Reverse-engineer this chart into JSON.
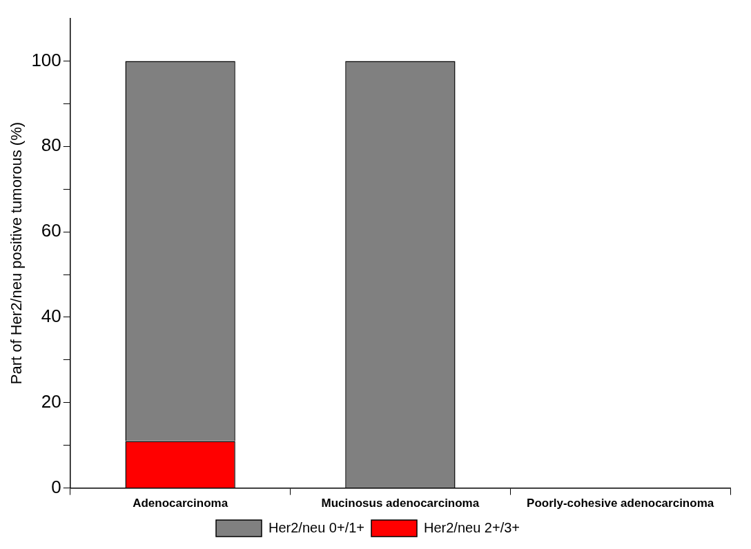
{
  "chart_data": {
    "type": "bar",
    "ylabel": "Part of Her2/neu positive tumorous (%)",
    "categories": [
      "Adenocarcinoma",
      "Mucinosus adenocarcinoma",
      "Poorly-cohesive adenocarcinoma"
    ],
    "stacked": true,
    "series": [
      {
        "name": "Her2/neu 2+/3+",
        "color": "#ff0000",
        "values": [
          11,
          0,
          0
        ]
      },
      {
        "name": "Her2/neu 0+/1+",
        "color": "#808080",
        "values": [
          89,
          100,
          0
        ]
      }
    ],
    "ylim": [
      0,
      110
    ],
    "yticks": [
      0,
      {
        "value": 10,
        "label": null
      },
      20,
      {
        "value": 30,
        "label": null
      },
      40,
      {
        "value": 50,
        "label": null
      },
      60,
      {
        "value": 70,
        "label": null
      },
      80,
      {
        "value": 90,
        "label": null
      },
      100
    ],
    "grid": false,
    "legend": "bottom"
  }
}
